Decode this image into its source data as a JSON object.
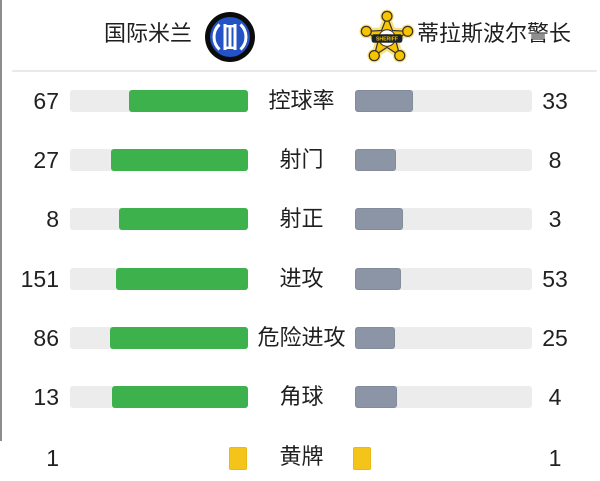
{
  "header": {
    "home_team": "国际米兰",
    "away_team": "蒂拉斯波尔警长"
  },
  "icons": {
    "home_logo": "inter-milan-crest",
    "away_logo": "sheriff-star-badge",
    "away_logo_text": "SHERIFF"
  },
  "stats": {
    "rows": [
      {
        "label": "控球率",
        "home": 67,
        "away": 33
      },
      {
        "label": "射门",
        "home": 27,
        "away": 8
      },
      {
        "label": "射正",
        "home": 8,
        "away": 3
      },
      {
        "label": "进攻",
        "home": 151,
        "away": 53
      },
      {
        "label": "危险进攻",
        "home": 86,
        "away": 25
      },
      {
        "label": "角球",
        "home": 13,
        "away": 4
      }
    ],
    "cards": {
      "label": "黄牌",
      "home": 1,
      "away": 1
    }
  },
  "chart_data": {
    "type": "bar",
    "categories": [
      "控球率",
      "射门",
      "射正",
      "进攻",
      "危险进攻",
      "角球",
      "黄牌"
    ],
    "series": [
      {
        "name": "国际米兰",
        "values": [
          67,
          27,
          8,
          151,
          86,
          13,
          1
        ]
      },
      {
        "name": "蒂拉斯波尔警长",
        "values": [
          33,
          8,
          3,
          53,
          25,
          4,
          1
        ]
      }
    ],
    "note": "bar width = value / (home+away) share of track"
  },
  "colors": {
    "home_bar": "#3db24c",
    "away_bar": "#8b95a5",
    "track": "#ececec",
    "card": "#f5c41a",
    "divider": "#e9e9e9",
    "inter_blue": "#2453c6",
    "sheriff_gold": "#f6c400"
  }
}
